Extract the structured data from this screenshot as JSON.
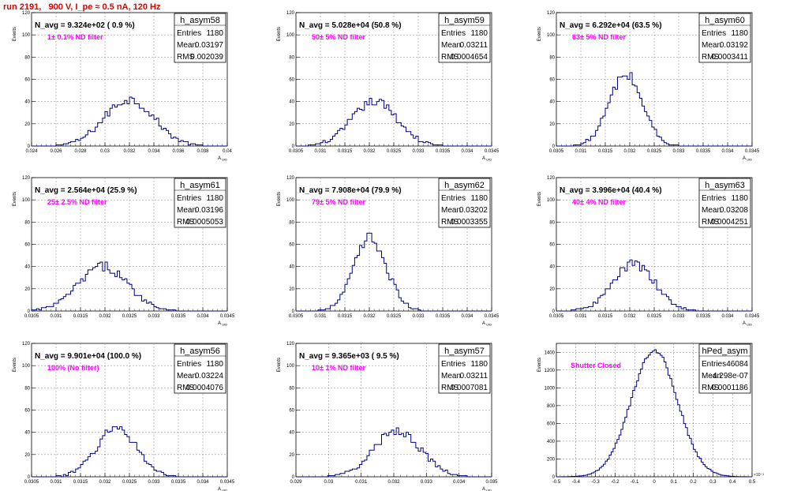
{
  "page_title": "run 2191,   900 V, I_pe ≈ 0.5 nA, 120 Hz",
  "colors": {
    "title": "#e00000",
    "histogram": "#000080",
    "annotation": "#ff00ff",
    "grid": "#808080"
  },
  "chart_data": [
    {
      "type": "bar",
      "name": "h_asym58",
      "navg_label": "N_avg = 9.324e+02 ( 0.9 %)",
      "filter_label": "1± 0.1% ND filter",
      "stats": {
        "entries": "1180",
        "mean": "0.03197",
        "rms": "0.002039"
      },
      "xlabel": "A",
      "xlabel_sub": "UID",
      "ylabel": "Events",
      "xlim": [
        0.024,
        0.04
      ],
      "ylim": [
        0,
        120
      ],
      "xticks": [
        "0.024",
        "0.026",
        "0.028",
        "0.03",
        "0.032",
        "0.034",
        "0.036",
        "0.038",
        "0.04"
      ],
      "yticks": [
        "0",
        "20",
        "40",
        "60",
        "80",
        "100",
        "120"
      ],
      "mu": 0.03197,
      "sigma": 0.002039,
      "peak": 42,
      "bins": 80
    },
    {
      "type": "bar",
      "name": "h_asym59",
      "navg_label": "N_avg = 5.028e+04 (50.8 %)",
      "filter_label": "50± 5% ND filter",
      "stats": {
        "entries": "1180",
        "mean": "0.03211",
        "rms": "0.0004654"
      },
      "xlabel": "A",
      "xlabel_sub": "UID",
      "ylabel": "Events",
      "xlim": [
        0.0305,
        0.0345
      ],
      "ylim": [
        0,
        120
      ],
      "xticks": [
        "0.0305",
        "0.031",
        "0.0315",
        "0.032",
        "0.0325",
        "0.033",
        "0.0335",
        "0.034",
        "0.0345"
      ],
      "yticks": [
        "0",
        "20",
        "40",
        "60",
        "80",
        "100",
        "120"
      ],
      "mu": 0.03211,
      "sigma": 0.0004654,
      "peak": 40,
      "bins": 80
    },
    {
      "type": "bar",
      "name": "h_asym60",
      "navg_label": "N_avg = 6.292e+04 (63.5 %)",
      "filter_label": "63± 5% ND filter",
      "stats": {
        "entries": "1180",
        "mean": "0.03192",
        "rms": "0.0003411"
      },
      "xlabel": "A",
      "xlabel_sub": "UID",
      "ylabel": "Events",
      "xlim": [
        0.0305,
        0.0345
      ],
      "ylim": [
        0,
        120
      ],
      "xticks": [
        "0.0305",
        "0.031",
        "0.0315",
        "0.032",
        "0.0325",
        "0.033",
        "0.0335",
        "0.034",
        "0.0345"
      ],
      "yticks": [
        "0",
        "20",
        "40",
        "60",
        "80",
        "100",
        "120"
      ],
      "mu": 0.03192,
      "sigma": 0.0003411,
      "peak": 64,
      "bins": 80
    },
    {
      "type": "bar",
      "name": "h_asym61",
      "navg_label": "N_avg = 2.564e+04 (25.9 %)",
      "filter_label": "25± 2.5% ND filter",
      "stats": {
        "entries": "1180",
        "mean": "0.03196",
        "rms": "0.0005053"
      },
      "xlabel": "A",
      "xlabel_sub": "UID",
      "ylabel": "Events",
      "xlim": [
        0.0305,
        0.0345
      ],
      "ylim": [
        0,
        120
      ],
      "xticks": [
        "0.0305",
        "0.031",
        "0.0315",
        "0.032",
        "0.0325",
        "0.033",
        "0.0335",
        "0.034",
        "0.0345"
      ],
      "yticks": [
        "0",
        "20",
        "40",
        "60",
        "80",
        "100",
        "120"
      ],
      "mu": 0.03196,
      "sigma": 0.0005053,
      "peak": 40,
      "bins": 80
    },
    {
      "type": "bar",
      "name": "h_asym62",
      "navg_label": "N_avg = 7.908e+04 (79.9 %)",
      "filter_label": "79± 5% ND filter",
      "stats": {
        "entries": "1180",
        "mean": "0.03202",
        "rms": "0.0003355"
      },
      "xlabel": "A",
      "xlabel_sub": "UID",
      "ylabel": "Events",
      "xlim": [
        0.0305,
        0.0345
      ],
      "ylim": [
        0,
        120
      ],
      "xticks": [
        "0.0305",
        "0.031",
        "0.0315",
        "0.032",
        "0.0325",
        "0.033",
        "0.0335",
        "0.034",
        "0.0345"
      ],
      "yticks": [
        "0",
        "20",
        "40",
        "60",
        "80",
        "100",
        "120"
      ],
      "mu": 0.03202,
      "sigma": 0.0003355,
      "peak": 65,
      "bins": 80
    },
    {
      "type": "bar",
      "name": "h_asym63",
      "navg_label": "N_avg = 3.996e+04 (40.4 %)",
      "filter_label": "40± 4% ND filter",
      "stats": {
        "entries": "1180",
        "mean": "0.03208",
        "rms": "0.0004251"
      },
      "xlabel": "A",
      "xlabel_sub": "UID",
      "ylabel": "Events",
      "xlim": [
        0.0305,
        0.0345
      ],
      "ylim": [
        0,
        120
      ],
      "xticks": [
        "0.0305",
        "0.031",
        "0.0315",
        "0.032",
        "0.0325",
        "0.033",
        "0.0335",
        "0.034",
        "0.0345"
      ],
      "yticks": [
        "0",
        "20",
        "40",
        "60",
        "80",
        "100",
        "120"
      ],
      "mu": 0.03208,
      "sigma": 0.0004251,
      "peak": 42,
      "bins": 80
    },
    {
      "type": "bar",
      "name": "h_asym56",
      "navg_label": "N_avg = 9.901e+04 (100.0 %)",
      "filter_label": "100% (No filter)",
      "stats": {
        "entries": "1180",
        "mean": "0.03224",
        "rms": "0.0004076"
      },
      "xlabel": "A",
      "xlabel_sub": "UID",
      "ylabel": "Events",
      "xlim": [
        0.0305,
        0.0345
      ],
      "ylim": [
        0,
        120
      ],
      "xticks": [
        "0.0305",
        "0.031",
        "0.0315",
        "0.032",
        "0.0325",
        "0.033",
        "0.0335",
        "0.034",
        "0.0345"
      ],
      "yticks": [
        "0",
        "20",
        "40",
        "60",
        "80",
        "100",
        "120"
      ],
      "mu": 0.03224,
      "sigma": 0.0004076,
      "peak": 44,
      "bins": 80
    },
    {
      "type": "bar",
      "name": "h_asym57",
      "navg_label": "N_avg = 9.365e+03 ( 9.5 %)",
      "filter_label": "10± 1% ND filter",
      "stats": {
        "entries": "1180",
        "mean": "0.03211",
        "rms": "0.0007081"
      },
      "xlabel": "A",
      "xlabel_sub": "UID",
      "ylabel": "Events",
      "xlim": [
        0.029,
        0.035
      ],
      "ylim": [
        0,
        120
      ],
      "xticks": [
        "0.029",
        "0.03",
        "0.031",
        "0.032",
        "0.033",
        "0.034",
        "0.035"
      ],
      "yticks": [
        "0",
        "20",
        "40",
        "60",
        "80",
        "100",
        "120"
      ],
      "mu": 0.03211,
      "sigma": 0.0007081,
      "peak": 42,
      "bins": 80
    },
    {
      "type": "bar",
      "name": "hPed_asym",
      "navg_label": "",
      "filter_label": "Shutter Closed",
      "stats": {
        "entries": "46084",
        "mean": "-4.298e-07",
        "rms": "0.0001186"
      },
      "xlabel": "",
      "xlabel_sub": "",
      "ylabel": "Events",
      "x_exponent": "×10⁻³",
      "xlim": [
        -0.5,
        0.5
      ],
      "ylim": [
        0,
        1500
      ],
      "xticks": [
        "-0.5",
        "-0.4",
        "-0.3",
        "-0.2",
        "-0.1",
        "0",
        "0.1",
        "0.2",
        "0.3",
        "0.4",
        "0.5"
      ],
      "yticks": [
        "0",
        "200",
        "400",
        "600",
        "800",
        "1000",
        "1200",
        "1400"
      ],
      "mu": 0.0,
      "sigma": 0.1186,
      "peak": 1420,
      "bins": 100
    }
  ]
}
